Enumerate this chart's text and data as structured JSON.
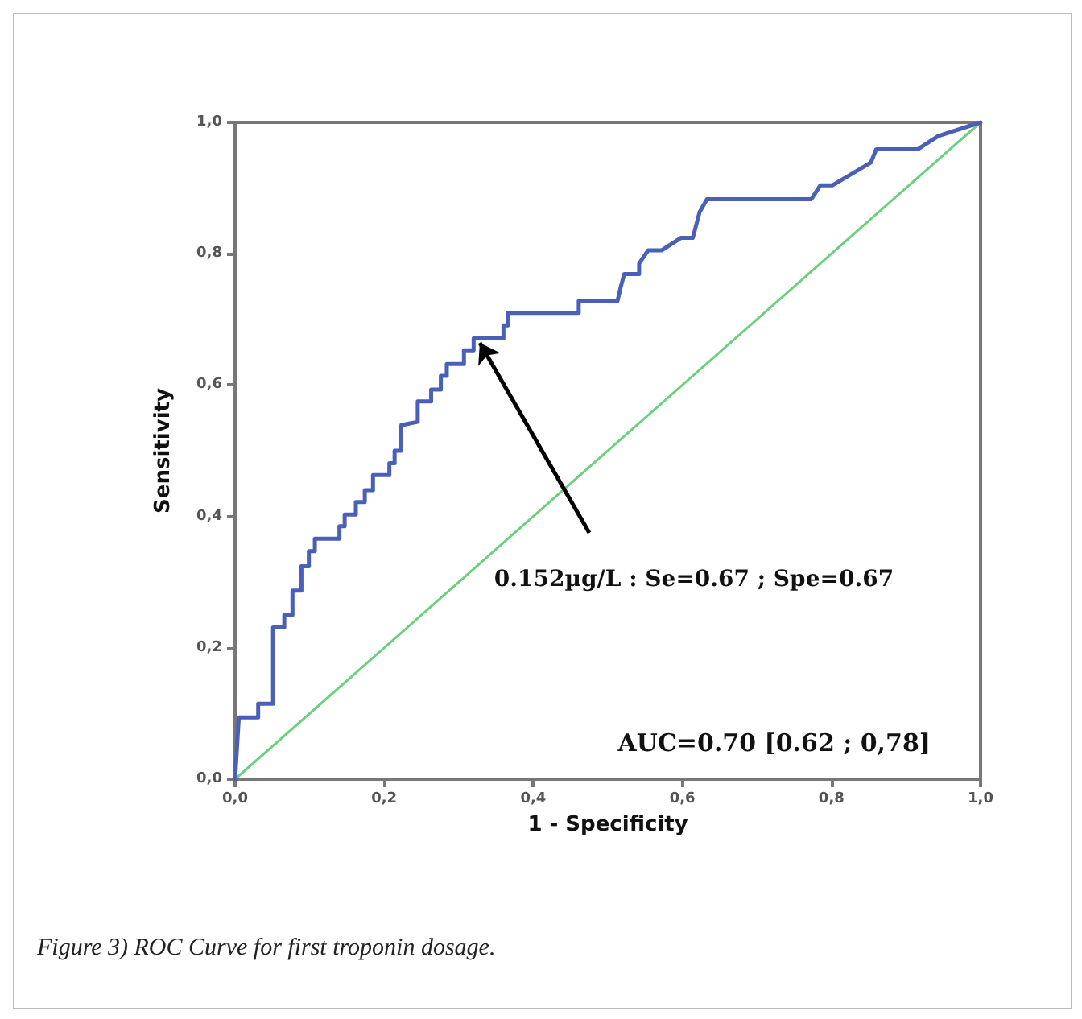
{
  "chart_data": {
    "type": "line",
    "xlabel": "1 - Specificity",
    "ylabel": "Sensitivity",
    "xlim": [
      0,
      1
    ],
    "ylim": [
      0,
      1
    ],
    "xticks": [
      {
        "value": 0,
        "label": "0,0"
      },
      {
        "value": 0.2,
        "label": "0,2"
      },
      {
        "value": 0.4,
        "label": "0,4"
      },
      {
        "value": 0.6,
        "label": "0,6"
      },
      {
        "value": 0.8,
        "label": "0,8"
      },
      {
        "value": 1,
        "label": "1,0"
      }
    ],
    "yticks": [
      {
        "value": 0,
        "label": "0,0"
      },
      {
        "value": 0.2,
        "label": "0,2"
      },
      {
        "value": 0.4,
        "label": "0,4"
      },
      {
        "value": 0.6,
        "label": "0,6"
      },
      {
        "value": 0.8,
        "label": "0,8"
      },
      {
        "value": 1,
        "label": "1,0"
      }
    ],
    "grid": false,
    "marker": "none",
    "line_style": "solid",
    "series": [
      {
        "color": "#4a5fb8",
        "x": [
          0,
          0.005,
          0.006,
          0.031,
          0.031,
          0.051,
          0.051,
          0.066,
          0.066,
          0.077,
          0.077,
          0.089,
          0.089,
          0.099,
          0.099,
          0.107,
          0.107,
          0.14,
          0.14,
          0.147,
          0.147,
          0.162,
          0.162,
          0.174,
          0.174,
          0.185,
          0.185,
          0.207,
          0.207,
          0.214,
          0.214,
          0.223,
          0.223,
          0.245,
          0.245,
          0.263,
          0.263,
          0.276,
          0.276,
          0.284,
          0.284,
          0.307,
          0.307,
          0.32,
          0.32,
          0.36,
          0.36,
          0.366,
          0.366,
          0.461,
          0.461,
          0.513,
          0.517,
          0.522,
          0.542,
          0.542,
          0.554,
          0.572,
          0.598,
          0.614,
          0.623,
          0.633,
          0.773,
          0.785,
          0.801,
          0.853,
          0.86,
          0.916,
          0.943,
          1
        ],
        "values": [
          0,
          0.094,
          0.094,
          0.094,
          0.115,
          0.115,
          0.231,
          0.231,
          0.25,
          0.25,
          0.287,
          0.287,
          0.324,
          0.324,
          0.347,
          0.347,
          0.366,
          0.366,
          0.385,
          0.385,
          0.403,
          0.403,
          0.422,
          0.422,
          0.44,
          0.44,
          0.463,
          0.463,
          0.481,
          0.481,
          0.5,
          0.5,
          0.539,
          0.544,
          0.575,
          0.575,
          0.593,
          0.593,
          0.614,
          0.614,
          0.632,
          0.632,
          0.653,
          0.653,
          0.671,
          0.671,
          0.691,
          0.691,
          0.71,
          0.71,
          0.728,
          0.728,
          0.748,
          0.769,
          0.769,
          0.785,
          0.805,
          0.805,
          0.824,
          0.824,
          0.863,
          0.883,
          0.883,
          0.904,
          0.904,
          0.939,
          0.959,
          0.959,
          0.979,
          1
        ]
      },
      {
        "color": "#6cd07f",
        "x": [
          0,
          1
        ],
        "values": [
          0,
          1
        ]
      }
    ],
    "annotations": [
      "0.152µg/L : Se=0.67 ; Spe=0.67",
      "AUC=0.70 [0.62 ; 0,78]",
      "Figure 3) ROC Curve for first troponin dosage."
    ]
  }
}
